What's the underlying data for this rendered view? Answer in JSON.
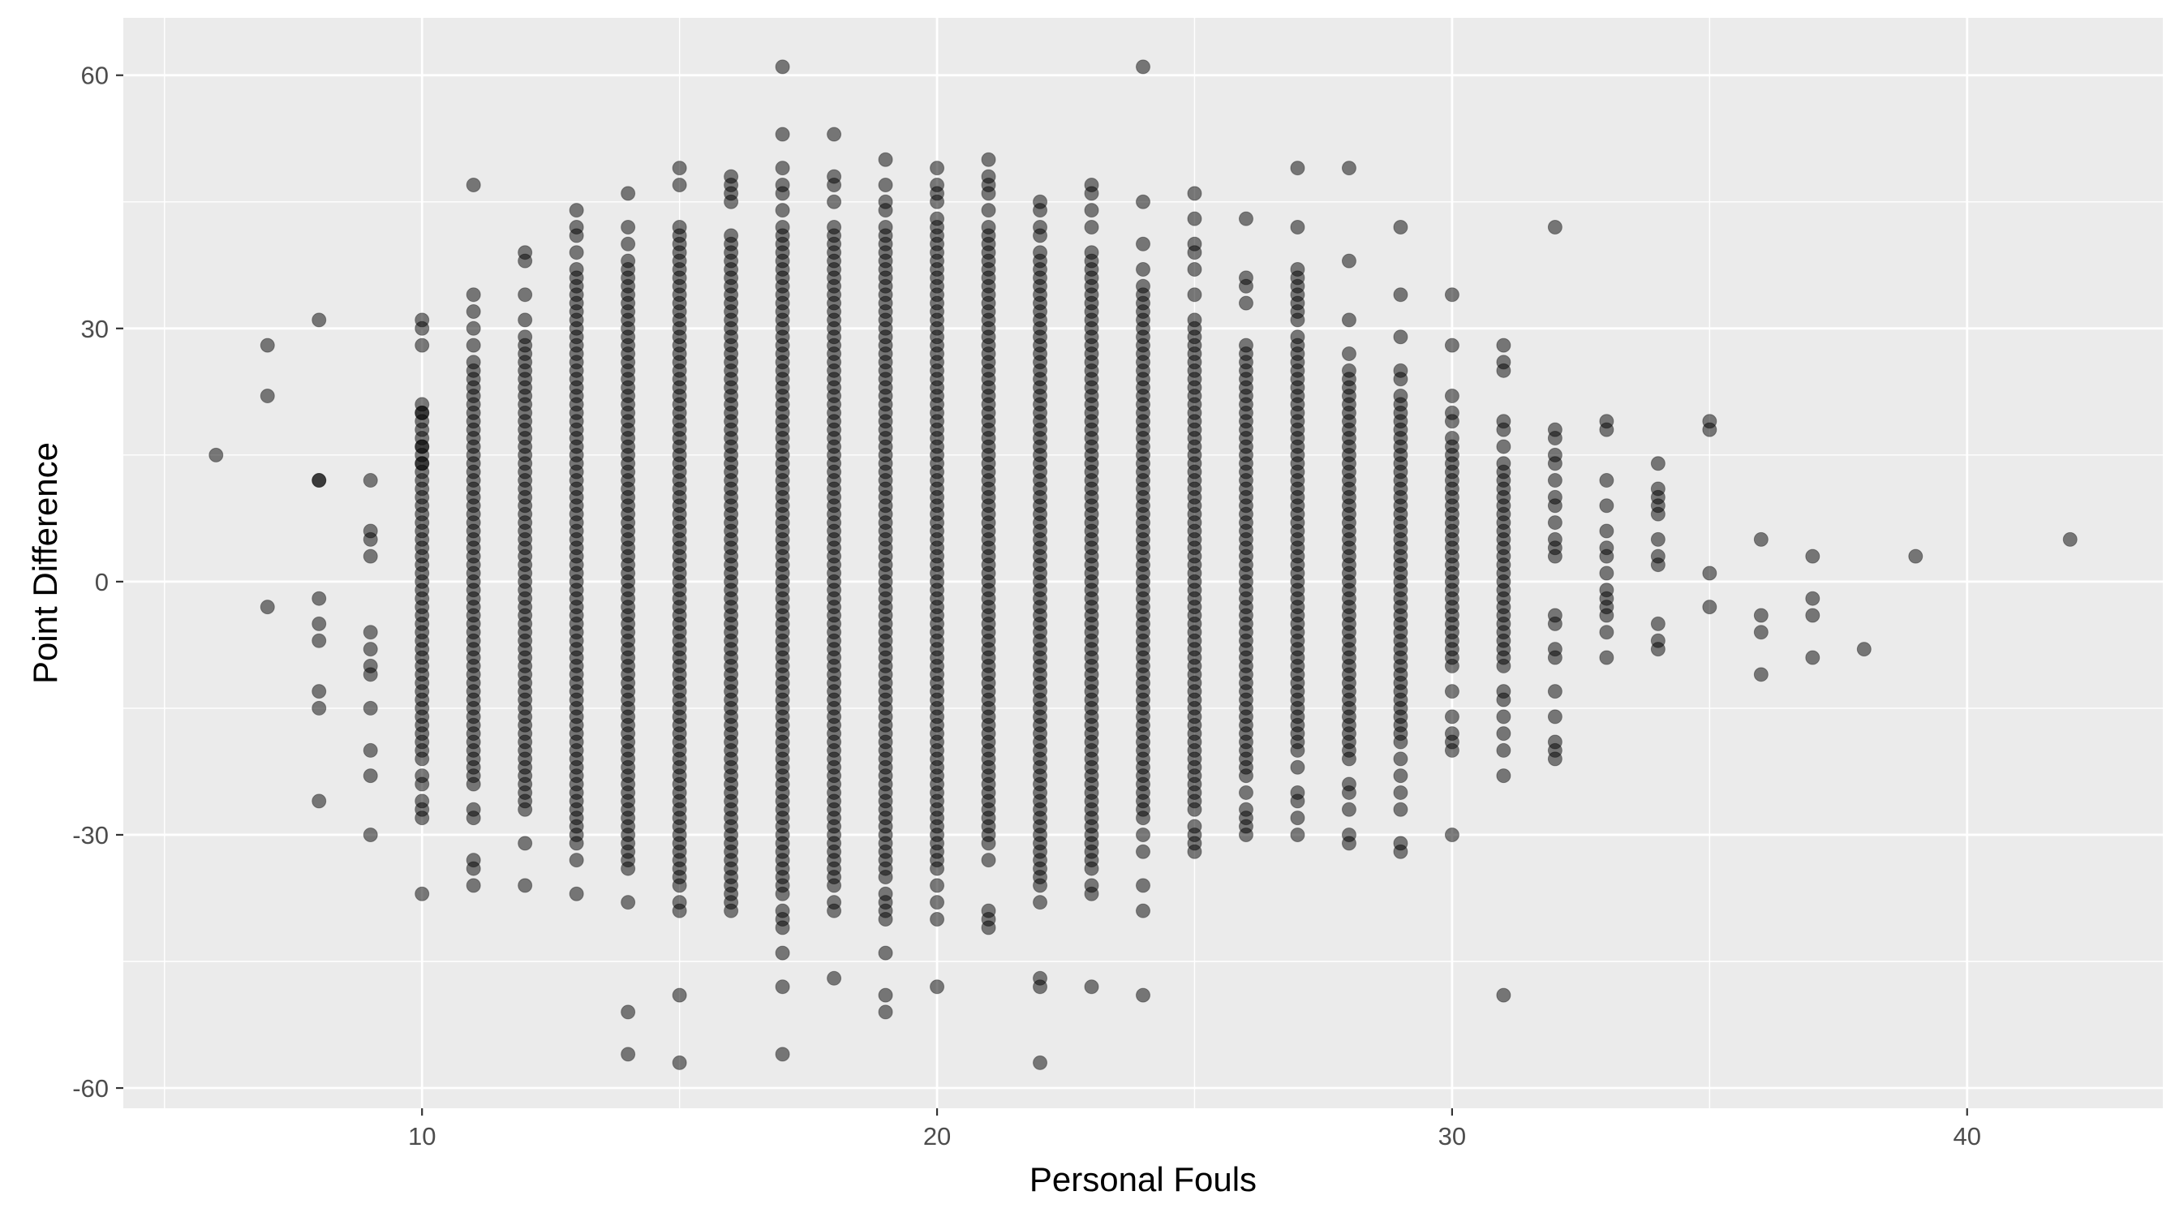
{
  "chart_data": {
    "type": "scatter",
    "title": "",
    "xlabel": "Personal Fouls",
    "ylabel": "Point Difference",
    "xlim": [
      4.2,
      43.8
    ],
    "ylim": [
      -62.4,
      66.8
    ],
    "x_ticks": [
      10,
      20,
      30,
      40
    ],
    "y_ticks": [
      -60,
      -30,
      0,
      30,
      60
    ],
    "grid": true,
    "legend": "none",
    "colors": {
      "panel_background": "#ebebeb",
      "grid_line": "#ffffff",
      "point_fill": "#000000",
      "point_opacity": 0.5
    },
    "columns": [
      {
        "x": 6,
        "y": [
          15
        ]
      },
      {
        "x": 7,
        "y": [
          28,
          22,
          -3
        ]
      },
      {
        "x": 8,
        "y": [
          31,
          12,
          12,
          -2,
          -5,
          -7,
          -13,
          -15,
          -26
        ]
      },
      {
        "x": 9,
        "y": [
          12,
          6,
          5,
          3,
          -6,
          -8,
          -10,
          -11,
          -15,
          -20,
          -23,
          -30
        ]
      },
      {
        "x": 10,
        "dense_from": -20,
        "dense_to": 20,
        "y": [
          31,
          30,
          28,
          21,
          20,
          16,
          14,
          -21,
          -23,
          -24,
          -26,
          -27,
          -28,
          -37
        ]
      },
      {
        "x": 11,
        "dense_from": -24,
        "dense_to": 26,
        "y": [
          47,
          34,
          32,
          30,
          28,
          -27,
          -28,
          -33,
          -34,
          -36
        ]
      },
      {
        "x": 12,
        "dense_from": -27,
        "dense_to": 29,
        "y": [
          39,
          38,
          34,
          31,
          -31,
          -36
        ]
      },
      {
        "x": 13,
        "dense_from": -30,
        "dense_to": 36,
        "y": [
          44,
          42,
          41,
          39,
          37,
          -31,
          -33,
          -37
        ]
      },
      {
        "x": 14,
        "dense_from": -33,
        "dense_to": 38,
        "y": [
          46,
          42,
          40,
          -34,
          -38,
          -51,
          -56
        ]
      },
      {
        "x": 15,
        "dense_from": -35,
        "dense_to": 40,
        "y": [
          49,
          47,
          42,
          41,
          -36,
          -38,
          -39,
          -49,
          -57
        ]
      },
      {
        "x": 16,
        "dense_from": -36,
        "dense_to": 41,
        "y": [
          48,
          47,
          46,
          45,
          -37,
          -38,
          -39
        ]
      },
      {
        "x": 17,
        "dense_from": -37,
        "dense_to": 42,
        "y": [
          61,
          53,
          49,
          47,
          46,
          44,
          -39,
          -40,
          -41,
          -44,
          -48,
          -56
        ]
      },
      {
        "x": 18,
        "dense_from": -35,
        "dense_to": 42,
        "y": [
          53,
          48,
          47,
          45,
          -36,
          -38,
          -39,
          -47
        ]
      },
      {
        "x": 19,
        "dense_from": -35,
        "dense_to": 42,
        "y": [
          50,
          47,
          45,
          44,
          -37,
          -38,
          -39,
          -40,
          -44,
          -49,
          -51
        ]
      },
      {
        "x": 20,
        "dense_from": -34,
        "dense_to": 43,
        "y": [
          49,
          47,
          46,
          45,
          -36,
          -38,
          -40,
          -48
        ]
      },
      {
        "x": 21,
        "dense_from": -31,
        "dense_to": 42,
        "y": [
          50,
          48,
          47,
          46,
          44,
          -33,
          -39,
          -40,
          -41
        ]
      },
      {
        "x": 22,
        "dense_from": -35,
        "dense_to": 39,
        "y": [
          45,
          44,
          42,
          41,
          -36,
          -38,
          -47,
          -48,
          -57
        ]
      },
      {
        "x": 23,
        "dense_from": -33,
        "dense_to": 39,
        "y": [
          47,
          46,
          44,
          42,
          -34,
          -36,
          -37,
          -48
        ]
      },
      {
        "x": 24,
        "dense_from": -28,
        "dense_to": 35,
        "y": [
          61,
          45,
          40,
          37,
          -30,
          -32,
          -36,
          -39,
          -49
        ]
      },
      {
        "x": 25,
        "dense_from": -27,
        "dense_to": 31,
        "y": [
          46,
          43,
          40,
          39,
          37,
          34,
          -29,
          -30,
          -31,
          -32
        ]
      },
      {
        "x": 26,
        "dense_from": -23,
        "dense_to": 28,
        "y": [
          43,
          36,
          35,
          33,
          -25,
          -27,
          -28,
          -29,
          -30
        ]
      },
      {
        "x": 27,
        "dense_from": -20,
        "dense_to": 29,
        "y": [
          49,
          42,
          37,
          36,
          35,
          34,
          33,
          32,
          31,
          -22,
          -25,
          -26,
          -28,
          -30
        ]
      },
      {
        "x": 28,
        "dense_from": -20,
        "dense_to": 25,
        "y": [
          49,
          38,
          31,
          27,
          -21,
          -24,
          -25,
          -27,
          -30,
          -31
        ]
      },
      {
        "x": 29,
        "dense_from": -18,
        "dense_to": 22,
        "y": [
          42,
          34,
          29,
          25,
          24,
          -19,
          -21,
          -23,
          -25,
          -27,
          -31,
          -32
        ]
      },
      {
        "x": 30,
        "dense_from": -10,
        "dense_to": 17,
        "y": [
          34,
          28,
          22,
          20,
          19,
          -13,
          -16,
          -18,
          -19,
          -20,
          -30
        ]
      },
      {
        "x": 31,
        "dense_from": -10,
        "dense_to": 14,
        "y": [
          28,
          26,
          25,
          19,
          18,
          16,
          -13,
          -14,
          -16,
          -18,
          -20,
          -23,
          -49
        ]
      },
      {
        "x": 32,
        "y": [
          42,
          18,
          17,
          15,
          14,
          12,
          10,
          9,
          7,
          5,
          4,
          3,
          -4,
          -5,
          -8,
          -9,
          -13,
          -16,
          -19,
          -20,
          -21
        ]
      },
      {
        "x": 33,
        "y": [
          19,
          18,
          12,
          9,
          6,
          4,
          3,
          1,
          -1,
          -2,
          -3,
          -4,
          -6,
          -9
        ]
      },
      {
        "x": 34,
        "y": [
          14,
          11,
          10,
          9,
          8,
          5,
          3,
          2,
          -5,
          -7,
          -8
        ]
      },
      {
        "x": 35,
        "y": [
          19,
          18,
          1,
          -3
        ]
      },
      {
        "x": 36,
        "y": [
          5,
          -4,
          -6,
          -11
        ]
      },
      {
        "x": 37,
        "y": [
          3,
          -2,
          -4,
          -9
        ]
      },
      {
        "x": 38,
        "y": [
          -8
        ]
      },
      {
        "x": 39,
        "y": [
          3
        ]
      },
      {
        "x": 42,
        "y": [
          5
        ]
      }
    ]
  }
}
